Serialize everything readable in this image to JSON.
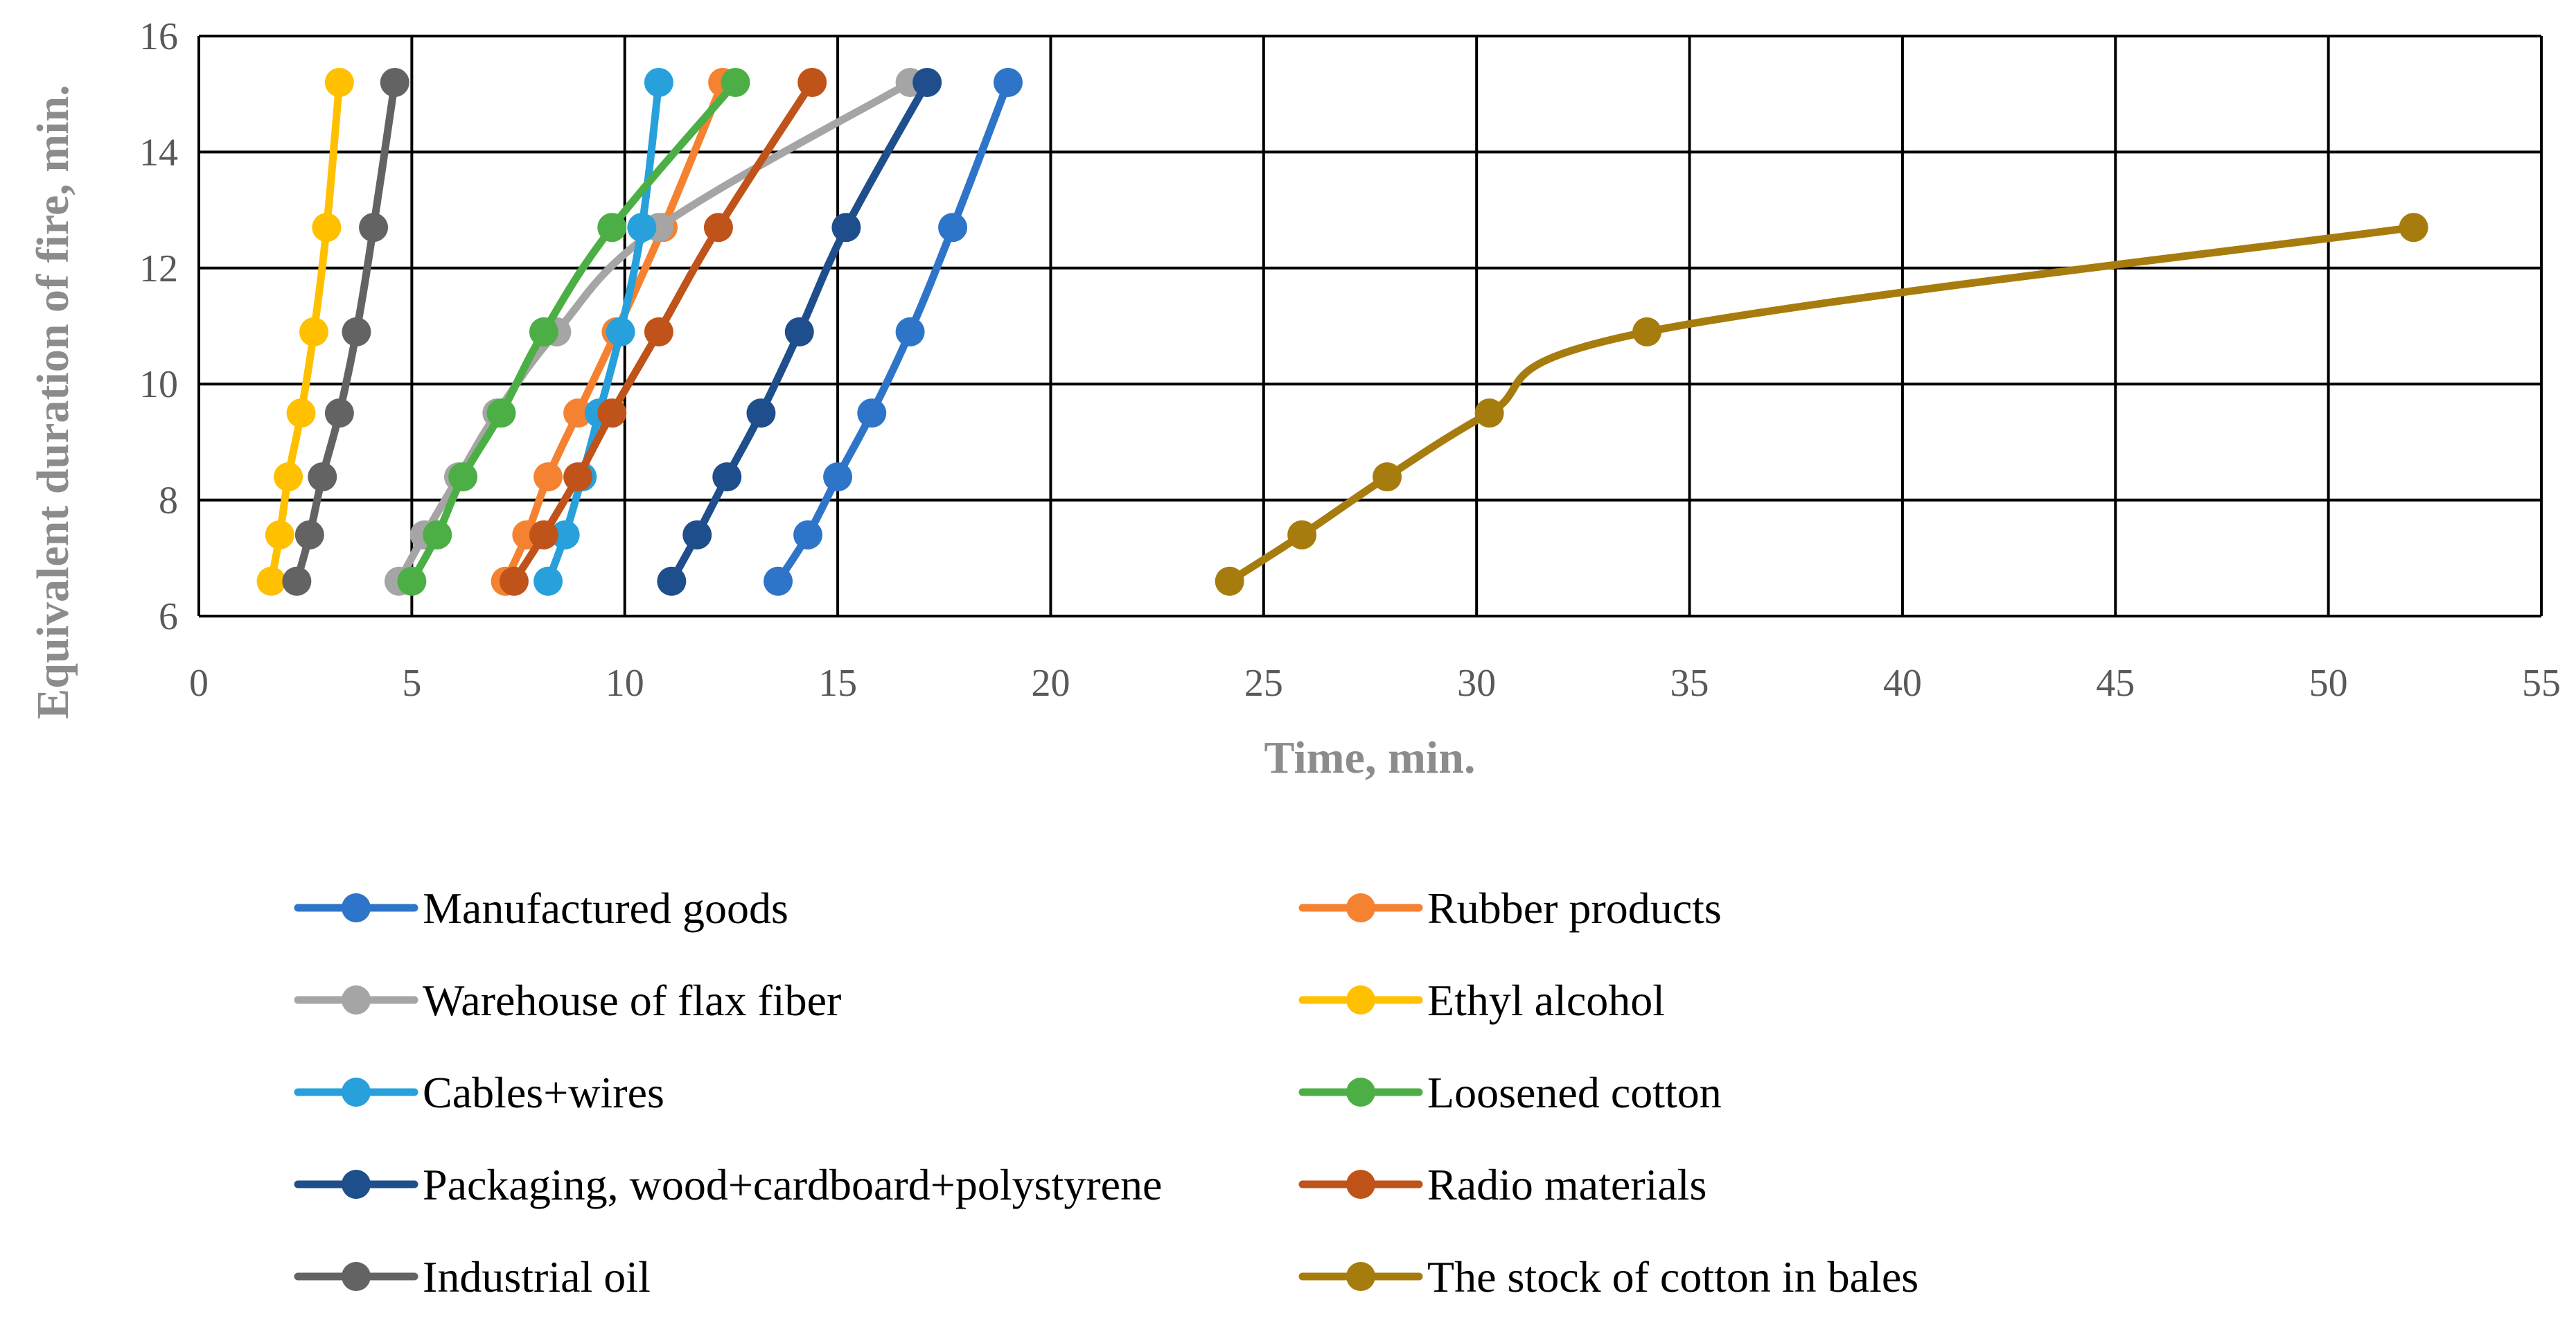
{
  "chart_data": {
    "type": "line",
    "title": "",
    "xlabel": "Time, min.",
    "ylabel": "Equivalent duration of fire, min.",
    "xlim": [
      0,
      55
    ],
    "ylim": [
      6,
      16
    ],
    "xticks": [
      0,
      5,
      10,
      15,
      20,
      25,
      30,
      35,
      40,
      45,
      50,
      55
    ],
    "yticks": [
      6,
      8,
      10,
      12,
      14,
      16
    ],
    "grid": true,
    "legend_position": "bottom",
    "y_levels": [
      6.6,
      7.4,
      8.4,
      9.5,
      10.9,
      12.7,
      15.2
    ],
    "series": [
      {
        "name": "Manufactured goods",
        "color": "#2e75c9",
        "x": [
          13.6,
          14.3,
          15.0,
          15.8,
          16.7,
          17.7,
          19.0
        ],
        "y": [
          6.6,
          7.4,
          8.4,
          9.5,
          10.9,
          12.7,
          15.2
        ]
      },
      {
        "name": "Rubber products",
        "color": "#f58231",
        "x": [
          7.2,
          7.7,
          8.2,
          8.9,
          9.8,
          10.9,
          12.3
        ],
        "y": [
          6.6,
          7.4,
          8.4,
          9.5,
          10.9,
          12.7,
          15.2
        ]
      },
      {
        "name": "Warehouse of flax fiber",
        "color": "#a5a5a5",
        "x": [
          4.7,
          5.3,
          6.1,
          7.0,
          8.4,
          10.8,
          16.7
        ],
        "y": [
          6.6,
          7.4,
          8.4,
          9.5,
          10.9,
          12.7,
          15.2
        ]
      },
      {
        "name": "Ethyl alcohol",
        "color": "#ffc000",
        "x": [
          1.7,
          1.9,
          2.1,
          2.4,
          2.7,
          3.0,
          3.3
        ],
        "y": [
          6.6,
          7.4,
          8.4,
          9.5,
          10.9,
          12.7,
          15.2
        ]
      },
      {
        "name": "Cables+wires",
        "color": "#28a0dc",
        "x": [
          8.2,
          8.6,
          9.0,
          9.4,
          9.9,
          10.4,
          10.8
        ],
        "y": [
          6.6,
          7.4,
          8.4,
          9.5,
          10.9,
          12.7,
          15.2
        ]
      },
      {
        "name": "Loosened cotton",
        "color": "#4caf45",
        "x": [
          5.0,
          5.6,
          6.2,
          7.1,
          8.1,
          9.7,
          12.6
        ],
        "y": [
          6.6,
          7.4,
          8.4,
          9.5,
          10.9,
          12.7,
          15.2
        ]
      },
      {
        "name": "Packaging, wood+cardboard+polystyrene",
        "color": "#1f4e8c",
        "x": [
          11.1,
          11.7,
          12.4,
          13.2,
          14.1,
          15.2,
          17.1
        ],
        "y": [
          6.6,
          7.4,
          8.4,
          9.5,
          10.9,
          12.7,
          15.2
        ]
      },
      {
        "name": "Radio materials",
        "color": "#c0531a",
        "x": [
          7.4,
          8.1,
          8.9,
          9.7,
          10.8,
          12.2,
          14.4
        ],
        "y": [
          6.6,
          7.4,
          8.4,
          9.5,
          10.9,
          12.7,
          15.2
        ]
      },
      {
        "name": " Industrial oil",
        "color": "#636363",
        "x": [
          2.3,
          2.6,
          2.9,
          3.3,
          3.7,
          4.1,
          4.6
        ],
        "y": [
          6.6,
          7.4,
          8.4,
          9.5,
          10.9,
          12.7,
          15.2
        ]
      },
      {
        "name": "The stock of cotton in bales",
        "color": "#a77c0e",
        "x": [
          24.2,
          25.9,
          27.9,
          30.3,
          34.0,
          52.0
        ],
        "y": [
          6.6,
          7.4,
          8.4,
          9.5,
          10.9,
          12.7
        ]
      }
    ]
  }
}
